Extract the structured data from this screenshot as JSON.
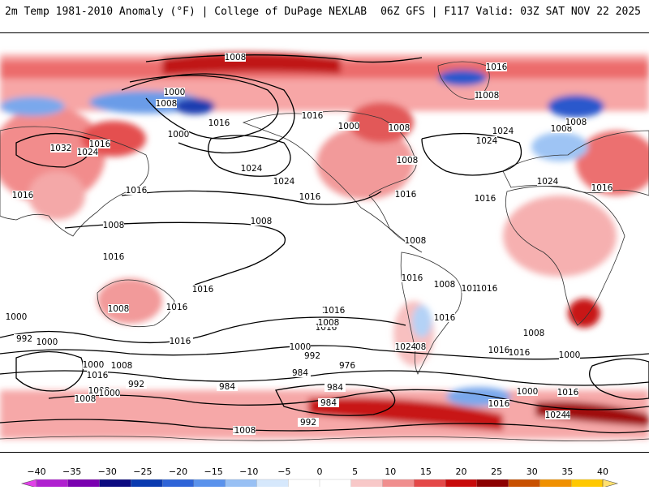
{
  "header": {
    "title": "2m Temp 1981-2010 Anomaly (°F) | College of DuPage NEXLAB",
    "run_info": "06Z GFS | F117 Valid: 03Z SAT NOV 22 2025"
  },
  "map": {
    "projection": "global equirectangular, Pacific-centered",
    "contour_color": "#000000",
    "contour_labels": [
      "1008",
      "1016",
      "1016",
      "1008",
      "1000",
      "1008",
      "1000",
      "1016",
      "1032",
      "1024",
      "1016",
      "1016",
      "1000",
      "1024",
      "1016",
      "1024",
      "1024",
      "1016",
      "1008",
      "1008",
      "1024",
      "1016",
      "1016",
      "1008",
      "1008",
      "1008",
      "1016",
      "1008",
      "1016",
      "1016",
      "1008",
      "1016",
      "1016",
      "1016",
      "1008",
      "1024",
      "1016",
      "1008",
      "1016",
      "1016",
      "1008",
      "1000",
      "1000",
      "992",
      "1000",
      "984",
      "992",
      "976",
      "1000",
      "984",
      "1008",
      "1008",
      "1000",
      "992",
      "984",
      "1000",
      "992",
      "1008",
      "1016",
      "1024",
      "1024",
      "984",
      "992",
      "1008",
      "1016",
      "1008",
      "1000",
      "1016",
      "1016",
      "1008",
      "1016",
      "1008",
      "1016",
      "1024",
      "1016",
      "1016",
      "1016"
    ]
  },
  "colorbar": {
    "ticks": [
      "−40",
      "−35",
      "−30",
      "−25",
      "−20",
      "−15",
      "−10",
      "−5",
      "0",
      "5",
      "10",
      "15",
      "20",
      "25",
      "30",
      "35",
      "40"
    ],
    "colors": [
      "#e040e8",
      "#b020d0",
      "#7a00b0",
      "#0c0a80",
      "#0a3ab0",
      "#2e64d8",
      "#5a92ec",
      "#98c0f4",
      "#d6e8fc",
      "#ffffff",
      "#ffffff",
      "#f8c8c8",
      "#f08e8e",
      "#e44848",
      "#c80a0a",
      "#8c0000",
      "#c85000",
      "#f09000",
      "#ffc800",
      "#ffe070"
    ]
  }
}
